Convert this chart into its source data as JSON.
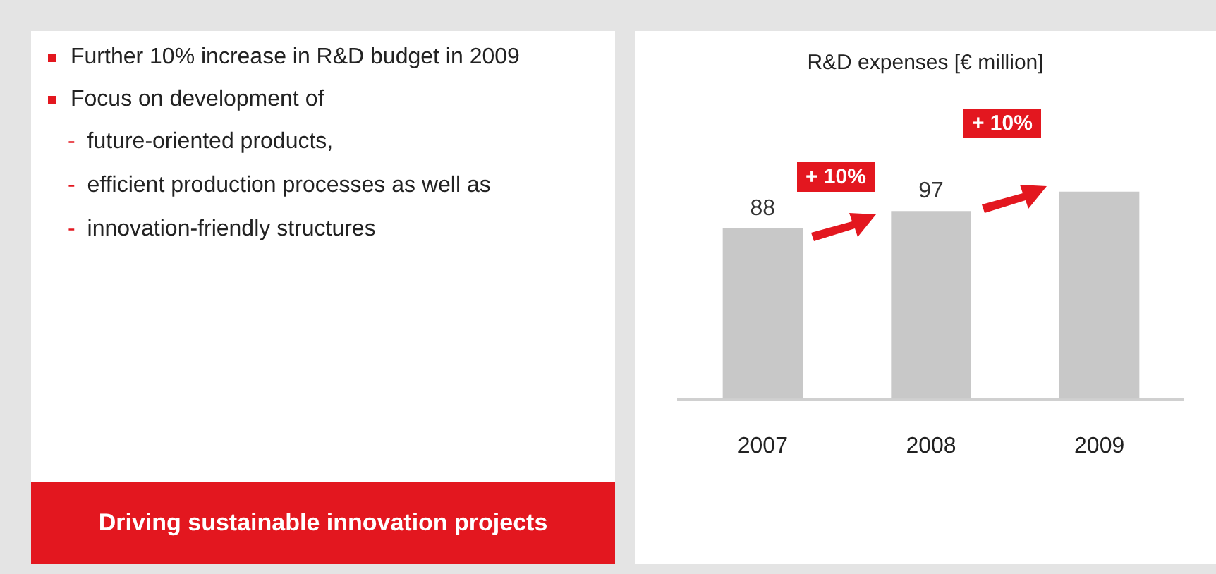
{
  "chart_data": [
    {
      "type": "other",
      "annotations": [
        "Further 10% increase in R&D budget in 2009",
        "Focus on development of",
        "- future-oriented products,",
        "- efficient production processes as well as",
        "- innovation-friendly structures",
        "Driving sustainable innovation projects"
      ]
    },
    {
      "type": "bar",
      "title": "R&D expenses [€ million]",
      "categories": [
        "2007",
        "2008",
        "2009"
      ],
      "values": [
        88,
        97,
        107
      ],
      "value_labels": [
        "88",
        "97",
        null
      ],
      "color": "#c8c8c8",
      "annotations": [
        "+ 10%",
        "+ 10%"
      ]
    }
  ]
}
